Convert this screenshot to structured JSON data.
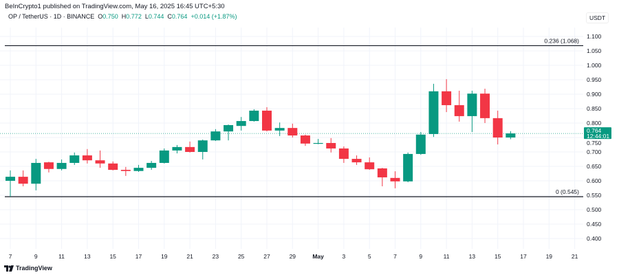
{
  "header": {
    "published": "BeInCrypto1 published on TradingView.com, May 16, 2025 16:45 UTC+5:30",
    "symbol": "OP / TetherUS · 1D · BINANCE",
    "o_label": "O",
    "o": "0.750",
    "h_label": "H",
    "h": "0.772",
    "l_label": "L",
    "l": "0.744",
    "c_label": "C",
    "c": "0.764",
    "change": "+0.014 (+1.87%)"
  },
  "currency": "USDT",
  "brand": "TradingView",
  "colors": {
    "up": "#089981",
    "down": "#F23645",
    "fib": "#131722",
    "grid": "#f0f3fa"
  },
  "chart_data": {
    "type": "candlestick",
    "ylim": [
      0.375,
      1.125
    ],
    "grid": true,
    "y_ticks": [
      "1.100",
      "1.050",
      "1.000",
      "0.950",
      "0.900",
      "0.850",
      "0.800",
      "0.750",
      "0.700",
      "0.650",
      "0.600",
      "0.550",
      "0.500",
      "0.450",
      "0.400"
    ],
    "x_ticks": [
      "7",
      "9",
      "11",
      "13",
      "15",
      "17",
      "19",
      "21",
      "23",
      "25",
      "27",
      "29",
      "May",
      "3",
      "5",
      "7",
      "9",
      "11",
      "13",
      "15",
      "17",
      "19",
      "21"
    ],
    "last_price": {
      "value": "0.764",
      "countdown": "12:44:01"
    },
    "fib_levels": [
      {
        "label": "0.236 (1.068)",
        "price": 1.068
      },
      {
        "label": "0 (0.545)",
        "price": 0.545
      }
    ],
    "candles": [
      {
        "date": "Apr 7",
        "o": 0.6,
        "h": 0.636,
        "l": 0.545,
        "c": 0.614
      },
      {
        "date": "Apr 8",
        "o": 0.614,
        "h": 0.636,
        "l": 0.581,
        "c": 0.59
      },
      {
        "date": "Apr 9",
        "o": 0.59,
        "h": 0.676,
        "l": 0.567,
        "c": 0.662
      },
      {
        "date": "Apr 10",
        "o": 0.664,
        "h": 0.666,
        "l": 0.629,
        "c": 0.641
      },
      {
        "date": "Apr 11",
        "o": 0.641,
        "h": 0.674,
        "l": 0.636,
        "c": 0.662
      },
      {
        "date": "Apr 12",
        "o": 0.662,
        "h": 0.698,
        "l": 0.655,
        "c": 0.688
      },
      {
        "date": "Apr 13",
        "o": 0.688,
        "h": 0.71,
        "l": 0.66,
        "c": 0.671
      },
      {
        "date": "Apr 14",
        "o": 0.671,
        "h": 0.705,
        "l": 0.645,
        "c": 0.66
      },
      {
        "date": "Apr 15",
        "o": 0.66,
        "h": 0.667,
        "l": 0.636,
        "c": 0.638
      },
      {
        "date": "Apr 16",
        "o": 0.638,
        "h": 0.648,
        "l": 0.617,
        "c": 0.634
      },
      {
        "date": "Apr 17",
        "o": 0.634,
        "h": 0.655,
        "l": 0.631,
        "c": 0.645
      },
      {
        "date": "Apr 18",
        "o": 0.645,
        "h": 0.669,
        "l": 0.638,
        "c": 0.662
      },
      {
        "date": "Apr 19",
        "o": 0.662,
        "h": 0.712,
        "l": 0.66,
        "c": 0.705
      },
      {
        "date": "Apr 20",
        "o": 0.705,
        "h": 0.724,
        "l": 0.695,
        "c": 0.717
      },
      {
        "date": "Apr 21",
        "o": 0.717,
        "h": 0.736,
        "l": 0.698,
        "c": 0.7
      },
      {
        "date": "Apr 22",
        "o": 0.7,
        "h": 0.743,
        "l": 0.674,
        "c": 0.74
      },
      {
        "date": "Apr 23",
        "o": 0.74,
        "h": 0.779,
        "l": 0.738,
        "c": 0.771
      },
      {
        "date": "Apr 24",
        "o": 0.771,
        "h": 0.795,
        "l": 0.74,
        "c": 0.793
      },
      {
        "date": "Apr 25",
        "o": 0.79,
        "h": 0.821,
        "l": 0.774,
        "c": 0.807
      },
      {
        "date": "Apr 26",
        "o": 0.807,
        "h": 0.848,
        "l": 0.805,
        "c": 0.843
      },
      {
        "date": "Apr 27",
        "o": 0.843,
        "h": 0.855,
        "l": 0.771,
        "c": 0.774
      },
      {
        "date": "Apr 28",
        "o": 0.774,
        "h": 0.802,
        "l": 0.755,
        "c": 0.783
      },
      {
        "date": "Apr 29",
        "o": 0.783,
        "h": 0.798,
        "l": 0.75,
        "c": 0.757
      },
      {
        "date": "Apr 30",
        "o": 0.757,
        "h": 0.76,
        "l": 0.721,
        "c": 0.729
      },
      {
        "date": "May 1",
        "o": 0.729,
        "h": 0.745,
        "l": 0.727,
        "c": 0.731
      },
      {
        "date": "May 2",
        "o": 0.731,
        "h": 0.748,
        "l": 0.698,
        "c": 0.712
      },
      {
        "date": "May 3",
        "o": 0.712,
        "h": 0.719,
        "l": 0.662,
        "c": 0.676
      },
      {
        "date": "May 4",
        "o": 0.676,
        "h": 0.688,
        "l": 0.655,
        "c": 0.664
      },
      {
        "date": "May 5",
        "o": 0.664,
        "h": 0.681,
        "l": 0.638,
        "c": 0.64
      },
      {
        "date": "May 6",
        "o": 0.643,
        "h": 0.645,
        "l": 0.581,
        "c": 0.612
      },
      {
        "date": "May 7",
        "o": 0.61,
        "h": 0.633,
        "l": 0.574,
        "c": 0.598
      },
      {
        "date": "May 8",
        "o": 0.598,
        "h": 0.698,
        "l": 0.595,
        "c": 0.693
      },
      {
        "date": "May 9",
        "o": 0.693,
        "h": 0.769,
        "l": 0.69,
        "c": 0.76
      },
      {
        "date": "May 10",
        "o": 0.762,
        "h": 0.936,
        "l": 0.752,
        "c": 0.91
      },
      {
        "date": "May 11",
        "o": 0.91,
        "h": 0.952,
        "l": 0.838,
        "c": 0.862
      },
      {
        "date": "May 12",
        "o": 0.862,
        "h": 0.912,
        "l": 0.805,
        "c": 0.824
      },
      {
        "date": "May 13",
        "o": 0.824,
        "h": 0.912,
        "l": 0.769,
        "c": 0.902
      },
      {
        "date": "May 14",
        "o": 0.902,
        "h": 0.919,
        "l": 0.8,
        "c": 0.817
      },
      {
        "date": "May 15",
        "o": 0.817,
        "h": 0.843,
        "l": 0.726,
        "c": 0.75
      },
      {
        "date": "May 16",
        "o": 0.75,
        "h": 0.772,
        "l": 0.744,
        "c": 0.764
      }
    ]
  }
}
